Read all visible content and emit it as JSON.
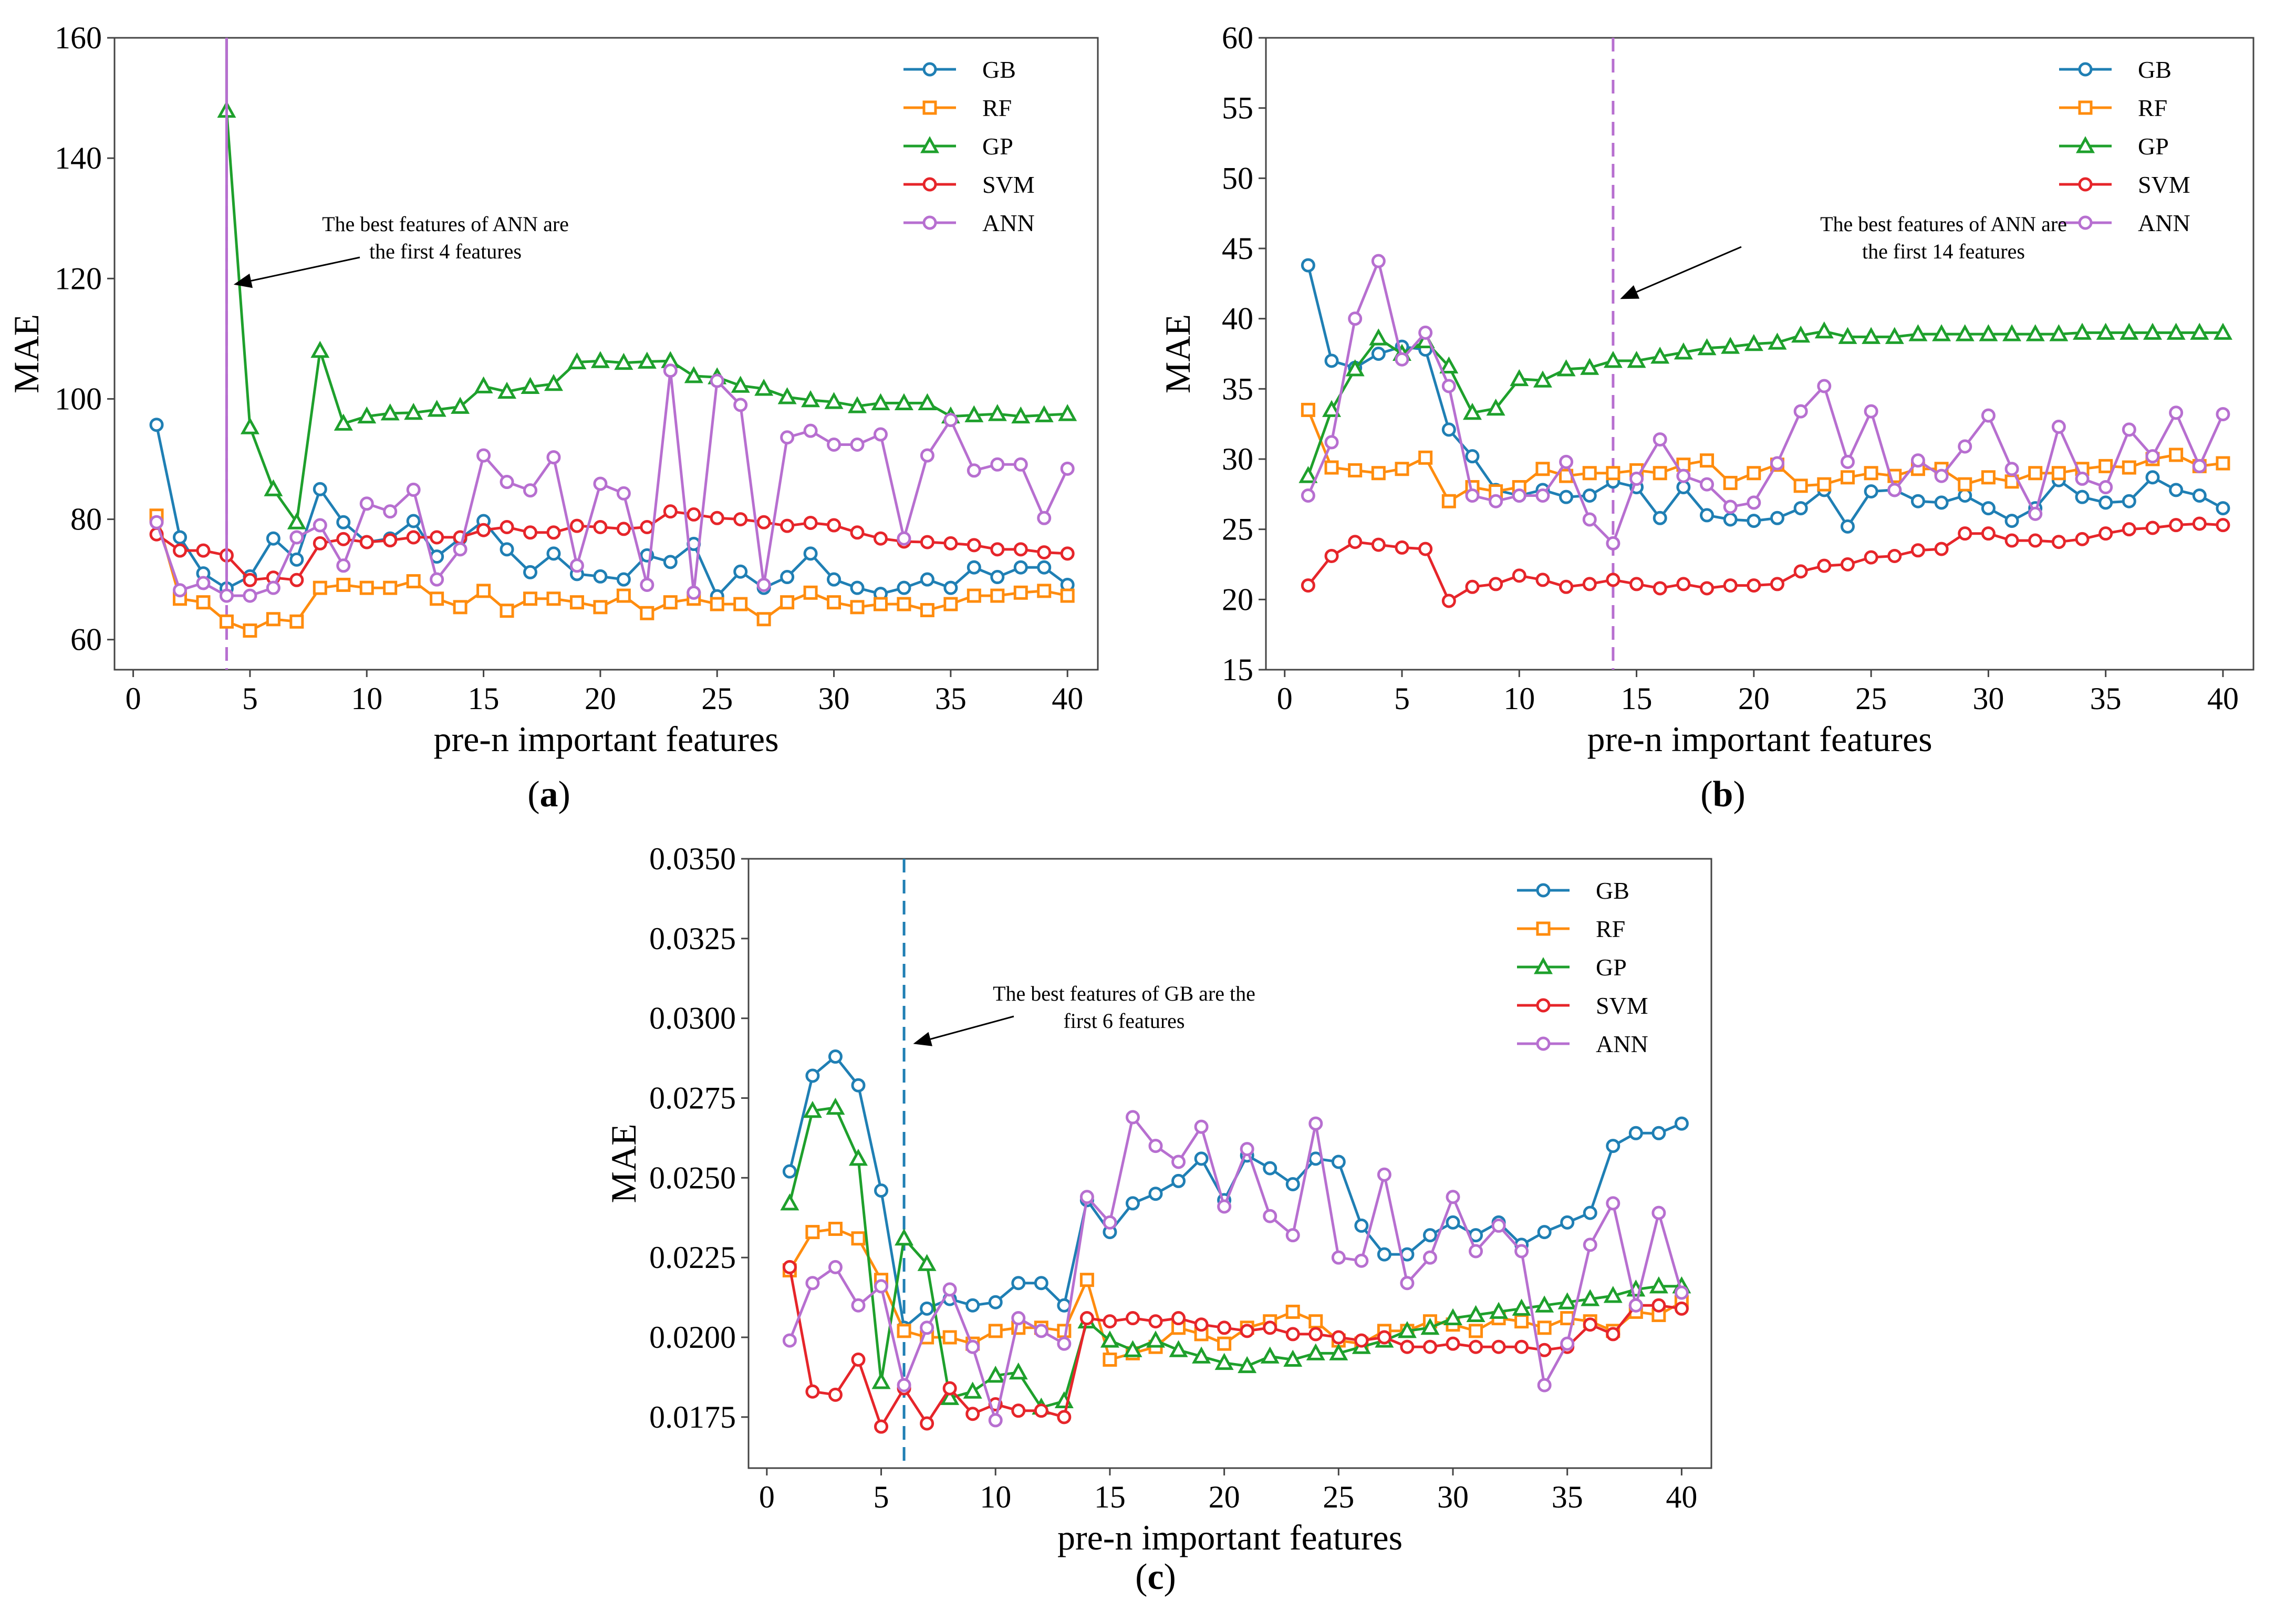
{
  "figure": {
    "series_order": [
      "GB",
      "RF",
      "GP",
      "SVM",
      "ANN"
    ],
    "colors": {
      "GB": "#1f7fb4",
      "RF": "#ff8c0e",
      "GP": "#1ea02c",
      "SVM": "#e6252a",
      "ANN": "#b76fd0"
    },
    "markers": {
      "GB": "circle",
      "RF": "square",
      "GP": "triangle",
      "SVM": "circle",
      "ANN": "circle"
    }
  },
  "chart_data": [
    {
      "type": "line",
      "panel_label": "a",
      "panel_paren_open": "(",
      "panel_paren_close": ")",
      "xlabel": "pre-n important features",
      "ylabel": "MAE",
      "xlim": [
        -0.8,
        41.3
      ],
      "ylim": [
        55,
        160
      ],
      "xticks": [
        0,
        5,
        10,
        15,
        20,
        25,
        30,
        35,
        40
      ],
      "yticks": [
        60,
        80,
        100,
        120,
        140,
        160
      ],
      "ytick_labels": [
        "60",
        "80",
        "100",
        "120",
        "140",
        "160"
      ],
      "legend_position": "top-right",
      "vline": {
        "x": 4,
        "color": "#b76fd0",
        "style": "dashed"
      },
      "annotation": {
        "lines": [
          "The best features of ANN are",
          "the first 4 features"
        ],
        "arrow_to": [
          4.3,
          119
        ]
      },
      "x": [
        1,
        2,
        3,
        4,
        5,
        6,
        7,
        8,
        9,
        10,
        11,
        12,
        13,
        14,
        15,
        16,
        17,
        18,
        19,
        20,
        21,
        22,
        23,
        24,
        25,
        26,
        27,
        28,
        29,
        30,
        31,
        32,
        33,
        34,
        35,
        36,
        37,
        38,
        39,
        40
      ],
      "series": [
        {
          "name": "GB",
          "values": [
            95.7,
            77,
            71,
            68.5,
            70.5,
            76.8,
            73.3,
            85,
            79.5,
            76.2,
            76.8,
            79.7,
            73.8,
            76.8,
            79.7,
            75,
            71.2,
            74.3,
            70.9,
            70.5,
            70,
            74,
            72.9,
            75.9,
            67.2,
            71.3,
            68.6,
            70.4,
            74.3,
            70,
            68.6,
            67.6,
            68.6,
            70,
            68.6,
            72,
            70.4,
            72,
            72,
            69.1
          ]
        },
        {
          "name": "RF",
          "values": [
            80.6,
            66.8,
            66.2,
            63,
            61.5,
            63.4,
            63,
            68.6,
            69.1,
            68.6,
            68.6,
            69.7,
            66.8,
            65.4,
            68.1,
            64.8,
            66.8,
            66.8,
            66.2,
            65.4,
            67.3,
            64.4,
            66.2,
            66.8,
            65.9,
            65.9,
            63.4,
            66.2,
            67.8,
            66.2,
            65.4,
            65.9,
            65.9,
            64.9,
            65.9,
            67.3,
            67.3,
            67.8,
            68.1,
            67.3
          ]
        },
        {
          "name": "GP",
          "values": [
            null,
            null,
            null,
            147.9,
            95.3,
            85,
            79.5,
            108,
            95.9,
            97.1,
            97.6,
            97.7,
            98.2,
            98.7,
            102.1,
            101.2,
            102,
            102.5,
            106.1,
            106.3,
            106,
            106.2,
            106.3,
            103.8,
            103.6,
            102.2,
            101.7,
            100.3,
            99.8,
            99.5,
            98.8,
            99.3,
            99.3,
            99.3,
            97.1,
            97.3,
            97.5,
            97.1,
            97.3,
            97.5
          ]
        },
        {
          "name": "SVM",
          "values": [
            77.5,
            74.8,
            74.8,
            74,
            69.9,
            70.3,
            69.9,
            76,
            76.7,
            76.2,
            76.5,
            77,
            77,
            77,
            78.2,
            78.7,
            77.8,
            77.8,
            78.9,
            78.7,
            78.4,
            78.7,
            81.3,
            80.8,
            80.2,
            80,
            79.5,
            78.9,
            79.4,
            79,
            77.8,
            76.8,
            76.3,
            76.2,
            76,
            75.7,
            75,
            75,
            74.5,
            74.3
          ]
        },
        {
          "name": "ANN",
          "values": [
            79.5,
            68.2,
            69.4,
            67.3,
            67.3,
            68.6,
            77,
            79,
            72.3,
            82.6,
            81.3,
            84.9,
            70,
            75,
            90.6,
            86.2,
            84.8,
            90.3,
            72.3,
            85.9,
            84.3,
            69.1,
            104.7,
            67.8,
            103,
            99,
            69.1,
            93.6,
            94.7,
            92.4,
            92.4,
            94.1,
            76.8,
            90.6,
            96.5,
            88.1,
            89.1,
            89.1,
            80.2,
            88.4
          ]
        }
      ]
    },
    {
      "type": "line",
      "panel_label": "b",
      "panel_paren_open": "(",
      "panel_paren_close": ")",
      "xlabel": "pre-n important features",
      "ylabel": "MAE",
      "xlim": [
        -0.8,
        41.3
      ],
      "ylim": [
        15,
        60
      ],
      "xticks": [
        0,
        5,
        10,
        15,
        20,
        25,
        30,
        35,
        40
      ],
      "yticks": [
        15,
        20,
        25,
        30,
        35,
        40,
        45,
        50,
        55,
        60
      ],
      "ytick_labels": [
        "15",
        "20",
        "25",
        "30",
        "35",
        "40",
        "45",
        "50",
        "55",
        "60"
      ],
      "legend_position": "top-right",
      "vline": {
        "x": 14,
        "color": "#b76fd0",
        "style": "dashed"
      },
      "annotation": {
        "lines": [
          "The best features of ANN are",
          "the first 14 features"
        ],
        "arrow_to": [
          14.3,
          41.4
        ]
      },
      "x": [
        1,
        2,
        3,
        4,
        5,
        6,
        7,
        8,
        9,
        10,
        11,
        12,
        13,
        14,
        15,
        16,
        17,
        18,
        19,
        20,
        21,
        22,
        23,
        24,
        25,
        26,
        27,
        28,
        29,
        30,
        31,
        32,
        33,
        34,
        35,
        36,
        37,
        38,
        39,
        40
      ],
      "series": [
        {
          "name": "GB",
          "values": [
            43.8,
            37,
            36.5,
            37.5,
            38,
            37.8,
            32.1,
            30.2,
            27.8,
            27.4,
            27.8,
            27.3,
            27.4,
            28.4,
            28,
            25.8,
            28,
            26,
            25.7,
            25.6,
            25.8,
            26.5,
            27.8,
            25.2,
            27.7,
            27.8,
            27,
            26.9,
            27.4,
            26.5,
            25.6,
            26.5,
            28.5,
            27.3,
            26.9,
            27,
            28.7,
            27.8,
            27.4,
            26.5
          ]
        },
        {
          "name": "RF",
          "values": [
            33.5,
            29.4,
            29.2,
            29,
            29.3,
            30.1,
            27,
            28,
            27.7,
            28,
            29.3,
            28.8,
            29,
            29,
            29.2,
            29,
            29.6,
            29.9,
            28.3,
            29,
            29.6,
            28.1,
            28.2,
            28.7,
            29,
            28.8,
            29.3,
            29.3,
            28.2,
            28.7,
            28.4,
            29,
            29,
            29.3,
            29.5,
            29.4,
            30,
            30.3,
            29.5,
            29.7
          ]
        },
        {
          "name": "GP",
          "values": [
            28.8,
            33.5,
            36.4,
            38.6,
            37.5,
            38.4,
            36.6,
            33.3,
            33.6,
            35.7,
            35.6,
            36.4,
            36.5,
            37,
            37,
            37.3,
            37.6,
            37.9,
            38,
            38.2,
            38.3,
            38.8,
            39.1,
            38.7,
            38.7,
            38.7,
            38.9,
            38.9,
            38.9,
            38.9,
            38.9,
            38.9,
            38.9,
            39,
            39,
            39,
            39,
            39,
            39,
            39
          ]
        },
        {
          "name": "SVM",
          "values": [
            21,
            23.1,
            24.1,
            23.9,
            23.7,
            23.6,
            19.9,
            20.9,
            21.1,
            21.7,
            21.4,
            20.9,
            21.1,
            21.4,
            21.1,
            20.8,
            21.1,
            20.8,
            21,
            21,
            21.1,
            22,
            22.4,
            22.5,
            23,
            23.1,
            23.5,
            23.6,
            24.7,
            24.7,
            24.2,
            24.2,
            24.1,
            24.3,
            24.7,
            25,
            25.1,
            25.3,
            25.4,
            25.3
          ]
        },
        {
          "name": "ANN",
          "values": [
            27.4,
            31.2,
            40,
            44.1,
            37.1,
            39,
            35.2,
            27.4,
            27,
            27.4,
            27.4,
            29.8,
            25.7,
            24,
            28.6,
            31.4,
            28.8,
            28.2,
            26.6,
            26.9,
            29.7,
            33.4,
            35.2,
            29.8,
            33.4,
            27.8,
            29.9,
            28.8,
            30.9,
            33.1,
            29.3,
            26.1,
            32.3,
            28.6,
            28,
            32.1,
            30.2,
            33.3,
            29.5,
            33.2
          ]
        }
      ]
    },
    {
      "type": "line",
      "panel_label": "c",
      "panel_paren_open": "(",
      "panel_paren_close": ")",
      "xlabel": "pre-n important features",
      "ylabel": "MAE",
      "xlim": [
        -0.8,
        41.3
      ],
      "ylim": [
        0.0159,
        0.035
      ],
      "xticks": [
        0,
        5,
        10,
        15,
        20,
        25,
        30,
        35,
        40
      ],
      "yticks": [
        0.0175,
        0.02,
        0.0225,
        0.025,
        0.0275,
        0.03,
        0.0325,
        0.035
      ],
      "ytick_labels": [
        "0.0175",
        "0.0200",
        "0.0225",
        "0.0250",
        "0.0275",
        "0.0300",
        "0.0325",
        "0.0350"
      ],
      "legend_position": "top-right",
      "vline": {
        "x": 6,
        "color": "#1f7fb4",
        "style": "dashed"
      },
      "annotation": {
        "lines": [
          "The best features of GB are the",
          "first 6 features"
        ],
        "arrow_to": [
          6.4,
          0.0292
        ]
      },
      "x": [
        1,
        2,
        3,
        4,
        5,
        6,
        7,
        8,
        9,
        10,
        11,
        12,
        13,
        14,
        15,
        16,
        17,
        18,
        19,
        20,
        21,
        22,
        23,
        24,
        25,
        26,
        27,
        28,
        29,
        30,
        31,
        32,
        33,
        34,
        35,
        36,
        37,
        38,
        39,
        40
      ],
      "series": [
        {
          "name": "GB",
          "values": [
            0.0252,
            0.0282,
            0.0288,
            0.0279,
            0.0246,
            0.0203,
            0.0209,
            0.0212,
            0.021,
            0.0211,
            0.0217,
            0.0217,
            0.021,
            0.0243,
            0.0233,
            0.0242,
            0.0245,
            0.0249,
            0.0256,
            0.0243,
            0.0257,
            0.0253,
            0.0248,
            0.0256,
            0.0255,
            0.0235,
            0.0226,
            0.0226,
            0.0232,
            0.0236,
            0.0232,
            0.0236,
            0.0229,
            0.0233,
            0.0236,
            0.0239,
            0.026,
            0.0264,
            0.0264,
            0.0267
          ]
        },
        {
          "name": "RF",
          "values": [
            0.0221,
            0.0233,
            0.0234,
            0.0231,
            0.0218,
            0.0202,
            0.02,
            0.02,
            0.0198,
            0.0202,
            0.0203,
            0.0203,
            0.0202,
            0.0218,
            0.0193,
            0.0195,
            0.0197,
            0.0203,
            0.0201,
            0.0198,
            0.0203,
            0.0205,
            0.0208,
            0.0205,
            0.0199,
            0.0198,
            0.0202,
            0.0202,
            0.0205,
            0.0204,
            0.0202,
            0.0206,
            0.0205,
            0.0203,
            0.0206,
            0.0205,
            0.0202,
            0.0208,
            0.0207,
            0.0211
          ]
        },
        {
          "name": "GP",
          "values": [
            0.0242,
            0.0271,
            0.0272,
            0.0256,
            0.0186,
            0.0231,
            0.0223,
            0.0181,
            0.0183,
            0.0188,
            0.0189,
            0.0178,
            0.018,
            0.0205,
            0.0199,
            0.0196,
            0.0199,
            0.0196,
            0.0194,
            0.0192,
            0.0191,
            0.0194,
            0.0193,
            0.0195,
            0.0195,
            0.0197,
            0.0199,
            0.0202,
            0.0203,
            0.0206,
            0.0207,
            0.0208,
            0.0209,
            0.021,
            0.0211,
            0.0212,
            0.0213,
            0.0215,
            0.0216,
            0.0216
          ]
        },
        {
          "name": "SVM",
          "values": [
            0.0222,
            0.0183,
            0.0182,
            0.0193,
            0.0172,
            0.0184,
            0.0173,
            0.0184,
            0.0176,
            0.0179,
            0.0177,
            0.0177,
            0.0175,
            0.0206,
            0.0205,
            0.0206,
            0.0205,
            0.0206,
            0.0204,
            0.0203,
            0.0202,
            0.0203,
            0.0201,
            0.0201,
            0.02,
            0.0199,
            0.02,
            0.0197,
            0.0197,
            0.0198,
            0.0197,
            0.0197,
            0.0197,
            0.0196,
            0.0197,
            0.0204,
            0.0201,
            0.021,
            0.021,
            0.0209
          ]
        },
        {
          "name": "ANN",
          "values": [
            0.0199,
            0.0217,
            0.0222,
            0.021,
            0.0216,
            0.0185,
            0.0203,
            0.0215,
            0.0197,
            0.0174,
            0.0206,
            0.0202,
            0.0198,
            0.0244,
            0.0236,
            0.0269,
            0.026,
            0.0255,
            0.0266,
            0.0241,
            0.0259,
            0.0238,
            0.0232,
            0.0267,
            0.0225,
            0.0224,
            0.0251,
            0.0217,
            0.0225,
            0.0244,
            0.0227,
            0.0235,
            0.0227,
            0.0185,
            0.0198,
            0.0229,
            0.0242,
            0.021,
            0.0239,
            0.0214
          ]
        }
      ]
    }
  ]
}
